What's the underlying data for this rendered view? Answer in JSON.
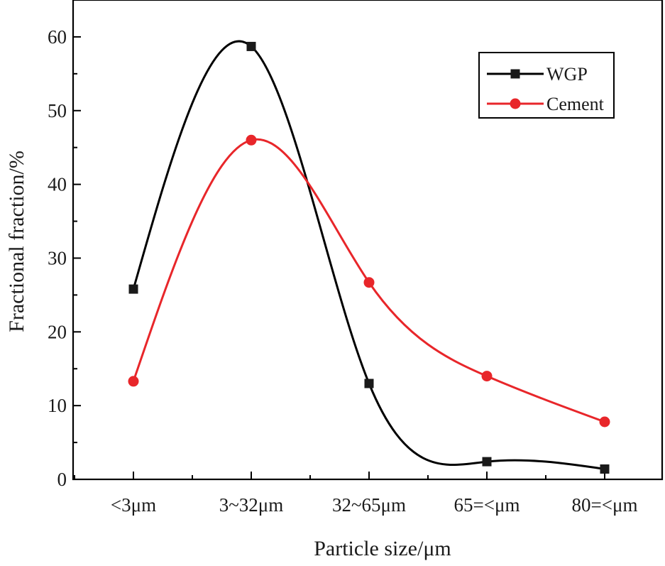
{
  "chart_data": {
    "type": "line",
    "title": "",
    "xlabel": "Particle size/μm",
    "ylabel": "Fractional fraction/%",
    "categories": [
      "<3μm",
      "3~32μm",
      "32~65μm",
      "65=<μm",
      "80=<μm"
    ],
    "ylim": [
      0,
      65
    ],
    "yticks": [
      0,
      10,
      20,
      30,
      40,
      50,
      60
    ],
    "grid": false,
    "legend_position": "top-right",
    "smooth": true,
    "series": [
      {
        "name": "WGP",
        "marker": "square",
        "color": "#000000",
        "marker_color": "#1a1a1a",
        "values": [
          25.8,
          58.7,
          13.0,
          2.4,
          1.4
        ]
      },
      {
        "name": "Cement",
        "marker": "circle",
        "color": "#e8262a",
        "marker_color": "#e8262a",
        "values": [
          13.3,
          46.0,
          26.7,
          14.0,
          7.8
        ]
      }
    ]
  }
}
